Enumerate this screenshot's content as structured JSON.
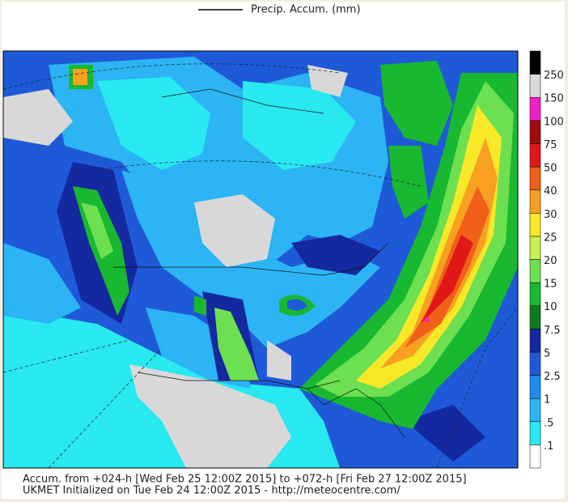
{
  "header": {
    "title": "Precip. Accum. (mm)"
  },
  "legend": {
    "labels": [
      ".1",
      ".5",
      "1",
      "2.5",
      "5",
      "7.5",
      "10",
      "15",
      "20",
      "25",
      "30",
      "40",
      "50",
      "75",
      "100",
      "150",
      "250"
    ],
    "colors": [
      "#ffffff",
      "#28e8f0",
      "#2cb4f4",
      "#1e8cf0",
      "#1e5ad8",
      "#1428a0",
      "#0c7c20",
      "#18b830",
      "#6ce050",
      "#c8f050",
      "#f8e828",
      "#f8a020",
      "#f06018",
      "#e01818",
      "#a00c0c",
      "#f020c8",
      "#d8d8d8",
      "#000000"
    ]
  },
  "footer": {
    "line1": "Accum. from +024-h [Wed Feb 25 12:00Z 2015] to +072-h [Fri Feb 27 12:00Z 2015]",
    "line2": "UKMET Initialized on Tue Feb 24 12:00Z 2015 - http://meteocentre.com/"
  }
}
